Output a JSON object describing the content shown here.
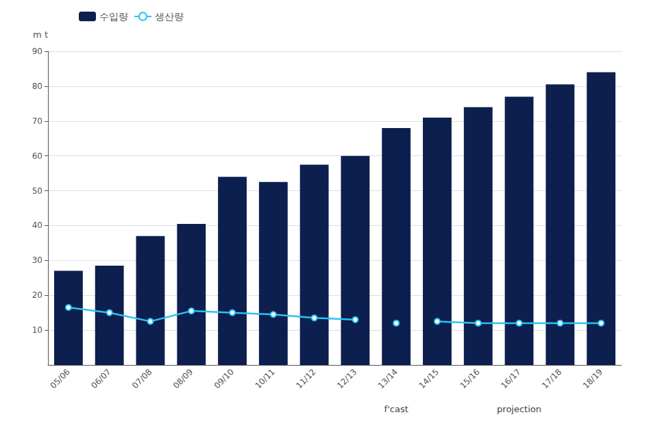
{
  "chart_data": {
    "type": "bar",
    "ylabel": "m t",
    "categories": [
      "05/06",
      "06/07",
      "07/08",
      "08/09",
      "09/10",
      "10/11",
      "11/12",
      "12/13",
      "13/14",
      "14/15",
      "15/16",
      "16/17",
      "17/18",
      "18/19"
    ],
    "series": [
      {
        "name": "수입량",
        "type": "bar",
        "color": "#0d1f4e",
        "values": [
          27,
          28.5,
          37,
          40.5,
          54,
          52.5,
          57.5,
          60,
          68,
          71,
          74,
          77,
          80.5,
          84
        ]
      },
      {
        "name": "생산량",
        "type": "line",
        "color": "#29c4f5",
        "marker": "circle",
        "values": [
          16.5,
          15,
          12.5,
          15.5,
          15,
          14.5,
          13.5,
          13,
          12,
          12.5,
          12,
          12,
          12,
          12
        ]
      }
    ],
    "ylim": [
      0,
      90
    ],
    "yticks": [
      10,
      20,
      30,
      40,
      50,
      60,
      70,
      80,
      90
    ],
    "grid": true,
    "legend": "upper left",
    "annotations": [
      {
        "text": "f'cast",
        "categories": [
          "13/14"
        ]
      },
      {
        "text": "projection",
        "categories": [
          "14/15",
          "18/19"
        ]
      }
    ]
  }
}
